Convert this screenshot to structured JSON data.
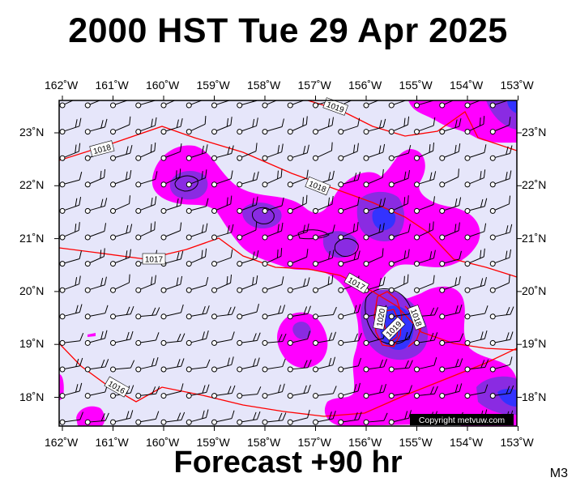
{
  "title": "2000 HST Tue 29 Apr 2025",
  "subtitle": "Forecast +90 hr",
  "model_label": "M3",
  "copyright": "Copyright metvuw.com",
  "lon_labels": [
    "162˚W",
    "161˚W",
    "160˚W",
    "159˚W",
    "158˚W",
    "157˚W",
    "156˚W",
    "155˚W",
    "154˚W",
    "153˚W"
  ],
  "lat_labels": [
    "23˚N",
    "22˚N",
    "21˚N",
    "20˚N",
    "19˚N",
    "18˚N"
  ],
  "isobar_labels": [
    "1018",
    "1018",
    "1019",
    "1017",
    "1017",
    "1016",
    "1020",
    "1019",
    "1018"
  ],
  "colors": {
    "background": "#e6e6fa",
    "precip_light": "#ff00ff",
    "precip_medium": "#8a2be2",
    "precip_heavy": "#3333ff",
    "isobar": "#ff0000",
    "coast": "#000000"
  }
}
